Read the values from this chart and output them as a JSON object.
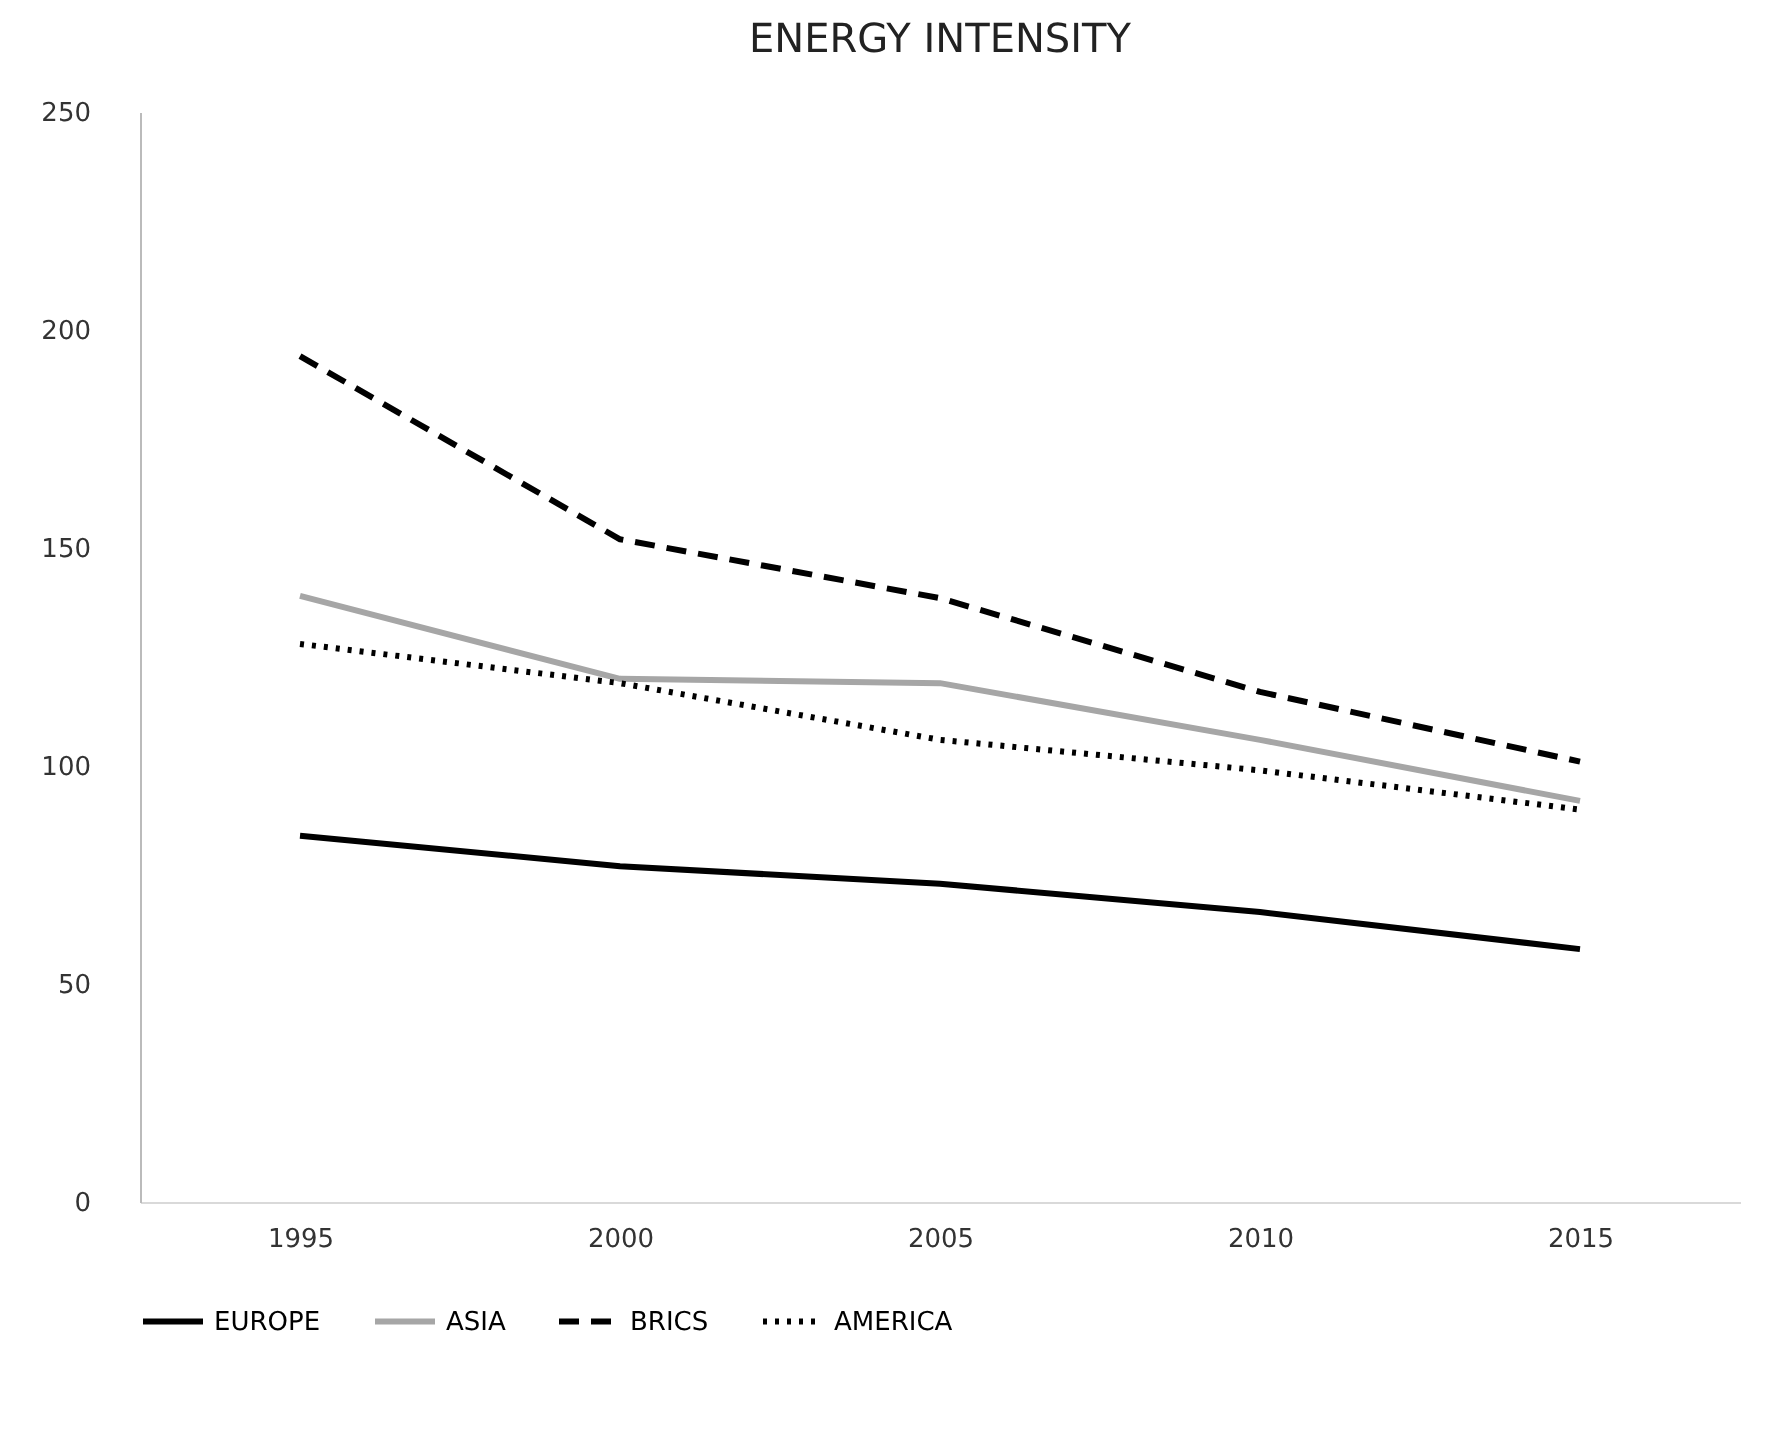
{
  "chart_data": {
    "type": "line",
    "title": "ENERGY INTENSITY",
    "categories": [
      "1995",
      "2000",
      "2005",
      "2010",
      "2015"
    ],
    "series": [
      {
        "name": "EUROPE",
        "color": "#000000",
        "line_style": "solid",
        "values": [
          84,
          77,
          73,
          66.5,
          58
        ]
      },
      {
        "name": "ASIA",
        "color": "#a6a6a6",
        "line_style": "solid",
        "values": [
          139,
          120,
          119,
          106,
          92
        ]
      },
      {
        "name": "BRICS",
        "color": "#000000",
        "line_style": "dashed",
        "values": [
          194,
          152,
          138.5,
          117,
          101
        ]
      },
      {
        "name": "AMERICA",
        "color": "#000000",
        "line_style": "dotted",
        "values": [
          128,
          119,
          106,
          99,
          90
        ]
      }
    ],
    "ylim": [
      0,
      250
    ],
    "yticks": [
      0,
      50,
      100,
      150,
      200,
      250
    ],
    "grid": false,
    "legend": "bottom",
    "marker": "none"
  }
}
